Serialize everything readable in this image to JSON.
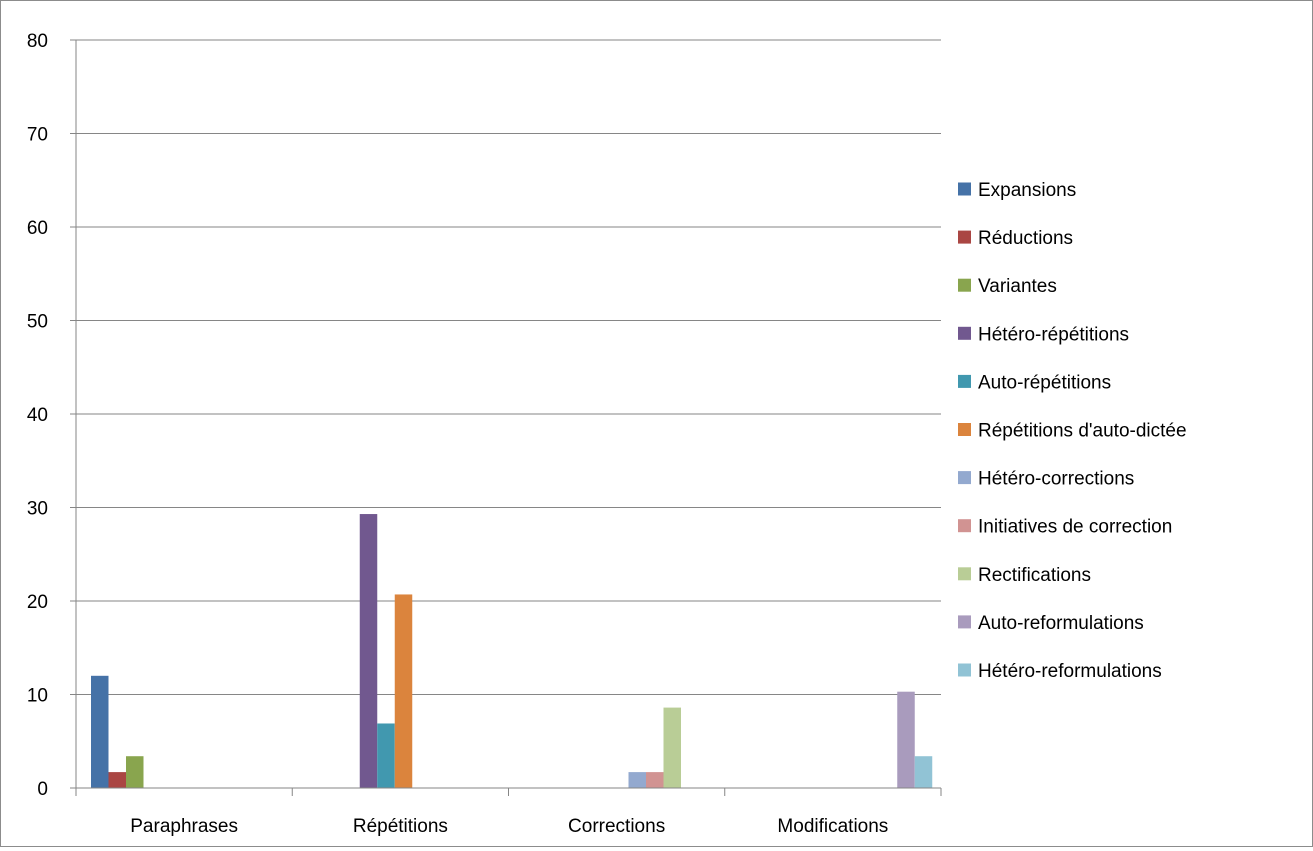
{
  "chart_data": {
    "type": "bar",
    "title": "",
    "xlabel": "",
    "ylabel": "",
    "categories": [
      "Paraphrases",
      "Répétitions",
      "Corrections",
      "Modifications"
    ],
    "ylim": [
      0,
      80
    ],
    "yticks": [
      0,
      10,
      20,
      30,
      40,
      50,
      60,
      70,
      80
    ],
    "grid": "horizontal",
    "legend_position": "right",
    "series": [
      {
        "name": "Expansions",
        "color": "#4572A7",
        "values": [
          12,
          0,
          0,
          0
        ]
      },
      {
        "name": "Réductions",
        "color": "#AA4643",
        "values": [
          1.7,
          0,
          0,
          0
        ]
      },
      {
        "name": "Variantes",
        "color": "#89A54E",
        "values": [
          3.4,
          0,
          0,
          0
        ]
      },
      {
        "name": "Hétéro-répétitions",
        "color": "#71588F",
        "values": [
          0,
          29.3,
          0,
          0
        ]
      },
      {
        "name": "Auto-répétitions",
        "color": "#4198AF",
        "values": [
          0,
          6.9,
          0,
          0
        ]
      },
      {
        "name": "Répétitions d'auto-dictée",
        "color": "#DB843D",
        "values": [
          0,
          20.7,
          0,
          0
        ]
      },
      {
        "name": "Hétéro-corrections",
        "color": "#93A9CF",
        "values": [
          0,
          0,
          1.7,
          0
        ]
      },
      {
        "name": "Initiatives de correction",
        "color": "#D19392",
        "values": [
          0,
          0,
          1.7,
          0
        ]
      },
      {
        "name": "Rectifications",
        "color": "#B9CD96",
        "values": [
          0,
          0,
          8.6,
          0
        ]
      },
      {
        "name": "Auto-reformulations",
        "color": "#A99BBD",
        "values": [
          0,
          0,
          0,
          10.3
        ]
      },
      {
        "name": "Hétéro-reformulations",
        "color": "#91C3D5",
        "values": [
          0,
          0,
          0,
          3.4
        ]
      }
    ]
  }
}
